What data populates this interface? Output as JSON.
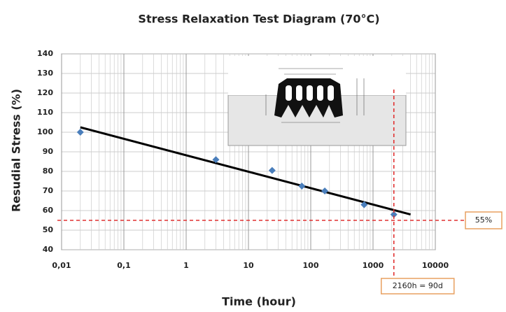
{
  "chart_data": {
    "type": "scatter",
    "title": "Stress Relaxation Test Diagram (70°C)",
    "x_label": "Time (hour)",
    "y_label": "Resudial Stress (%)",
    "xscale": "log",
    "grid": true,
    "minor_grid": true,
    "xlim": [
      0.01,
      10000
    ],
    "ylim": [
      40,
      140
    ],
    "xticks": [
      {
        "value": 0.01,
        "label": "0,01"
      },
      {
        "value": 0.1,
        "label": "0,1"
      },
      1,
      10,
      100,
      1000,
      10000
    ],
    "yticks": [
      40,
      50,
      60,
      70,
      80,
      90,
      100,
      110,
      120,
      130,
      140
    ],
    "series": [
      {
        "color": "#4a7ebb",
        "x": [
          0.02,
          3,
          24,
          72,
          168,
          720,
          2160
        ],
        "values": [
          100,
          86,
          80.5,
          72.5,
          70,
          63,
          58
        ]
      }
    ],
    "trend": {
      "color": "#000000",
      "x": [
        0.02,
        4000
      ],
      "values": [
        102.5,
        58
      ]
    },
    "reference": {
      "color": "#e03030",
      "y": 55,
      "x": 2160,
      "y_label": "55%",
      "x_label": "2160h = 90d"
    }
  }
}
